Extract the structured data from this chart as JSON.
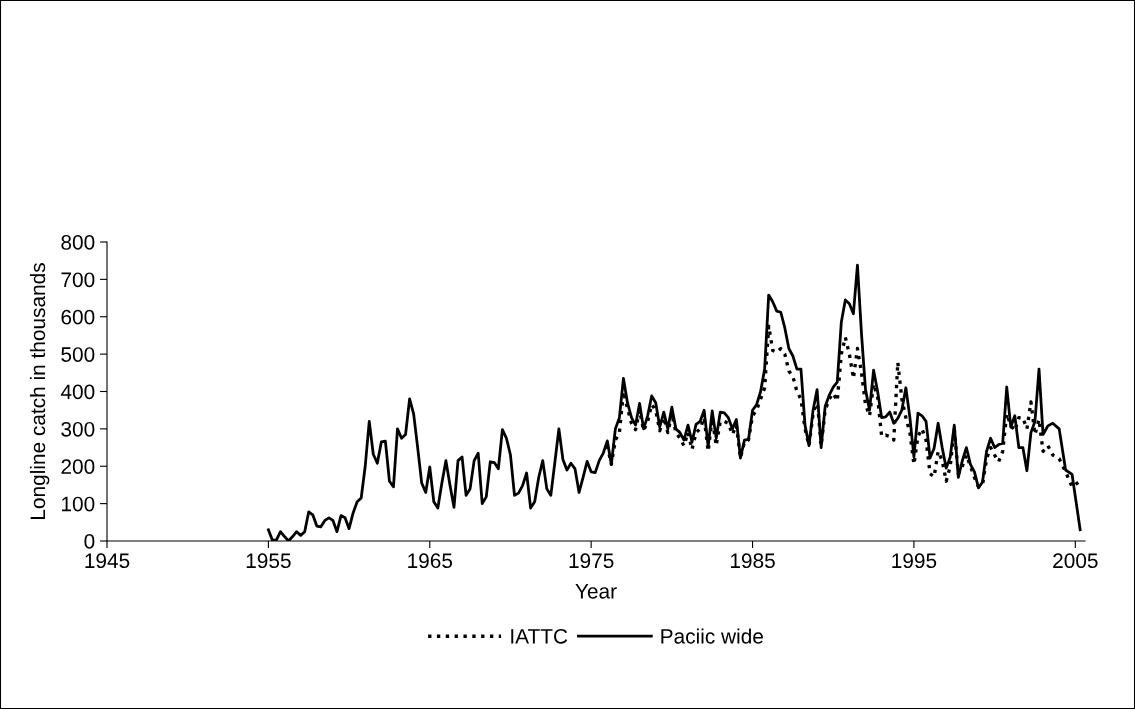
{
  "chart_data": {
    "type": "line",
    "xlabel": "Year",
    "ylabel": "Longline catch in thousands",
    "xlim": [
      1945,
      2005.6
    ],
    "xticks": [
      1945,
      1955,
      1965,
      1975,
      1985,
      1995,
      2005
    ],
    "ylim": [
      0,
      800
    ],
    "yticks": [
      0,
      100,
      200,
      300,
      400,
      500,
      600,
      700,
      800
    ],
    "grid": false,
    "legend": "bottom",
    "marker": "none",
    "series": [
      {
        "name": "IATTC",
        "color": "#000000",
        "line_style": "dotted",
        "x": [
          1976.0,
          1976.25,
          1976.5,
          1976.75,
          1977.0,
          1977.25,
          1977.5,
          1977.75,
          1978.0,
          1978.25,
          1978.5,
          1978.75,
          1979.0,
          1979.25,
          1979.5,
          1979.75,
          1980.0,
          1980.25,
          1980.5,
          1980.75,
          1981.0,
          1981.25,
          1981.5,
          1981.75,
          1982.0,
          1982.25,
          1982.5,
          1982.75,
          1983.0,
          1983.25,
          1983.5,
          1983.75,
          1984.0,
          1984.25,
          1984.5,
          1984.75,
          1985.0,
          1985.25,
          1985.5,
          1985.75,
          1986.0,
          1986.25,
          1986.5,
          1986.75,
          1987.0,
          1987.25,
          1987.5,
          1987.75,
          1988.0,
          1988.25,
          1988.5,
          1988.75,
          1989.0,
          1989.25,
          1989.5,
          1989.75,
          1990.0,
          1990.25,
          1990.5,
          1990.75,
          1991.0,
          1991.25,
          1991.5,
          1991.75,
          1992.0,
          1992.25,
          1992.5,
          1992.75,
          1993.0,
          1993.25,
          1993.5,
          1993.75,
          1994.0,
          1994.25,
          1994.5,
          1994.75,
          1995.0,
          1995.25,
          1995.5,
          1995.75,
          1996.0,
          1996.25,
          1996.5,
          1996.75,
          1997.0,
          1997.25,
          1997.5,
          1997.75,
          1998.0,
          1998.25,
          1998.5,
          1998.75,
          1999.0,
          1999.25,
          1999.5,
          1999.75,
          2000.0,
          2000.25,
          2000.5,
          2000.75,
          2001.0,
          2001.25,
          2001.5,
          2001.75,
          2002.0,
          2002.25,
          2002.5,
          2002.75,
          2003.0,
          2003.3,
          2003.6,
          2004.0,
          2004.4,
          2004.8,
          2005.3
        ],
        "values": [
          255,
          205,
          270,
          290,
          400,
          355,
          315,
          298,
          350,
          295,
          320,
          365,
          350,
          295,
          330,
          290,
          340,
          290,
          275,
          255,
          290,
          245,
          290,
          300,
          330,
          240,
          330,
          255,
          320,
          320,
          315,
          285,
          310,
          222,
          265,
          270,
          335,
          350,
          380,
          410,
          575,
          510,
          505,
          515,
          500,
          455,
          440,
          400,
          380,
          300,
          255,
          340,
          380,
          255,
          350,
          380,
          395,
          375,
          500,
          545,
          500,
          435,
          515,
          450,
          365,
          335,
          420,
          385,
          280,
          283,
          280,
          270,
          478,
          380,
          330,
          290,
          205,
          280,
          300,
          270,
          180,
          172,
          240,
          215,
          160,
          200,
          300,
          180,
          200,
          230,
          200,
          170,
          145,
          150,
          220,
          250,
          230,
          212,
          240,
          340,
          310,
          295,
          330,
          330,
          300,
          372,
          285,
          325,
          240,
          255,
          230,
          220,
          185,
          145,
          160
        ]
      },
      {
        "name": "Paciic wide",
        "color": "#000000",
        "line_style": "solid",
        "x": [
          1955.0,
          1955.25,
          1955.5,
          1955.75,
          1956.0,
          1956.25,
          1956.5,
          1956.75,
          1957.0,
          1957.25,
          1957.5,
          1957.75,
          1958.0,
          1958.25,
          1958.5,
          1958.75,
          1959.0,
          1959.25,
          1959.5,
          1959.75,
          1960.0,
          1960.25,
          1960.5,
          1960.75,
          1961.0,
          1961.25,
          1961.5,
          1961.75,
          1962.0,
          1962.25,
          1962.5,
          1962.75,
          1963.0,
          1963.25,
          1963.5,
          1963.75,
          1964.0,
          1964.25,
          1964.5,
          1964.75,
          1965.0,
          1965.25,
          1965.5,
          1965.75,
          1966.0,
          1966.25,
          1966.5,
          1966.75,
          1967.0,
          1967.25,
          1967.5,
          1967.75,
          1968.0,
          1968.25,
          1968.5,
          1968.75,
          1969.0,
          1969.25,
          1969.5,
          1969.75,
          1970.0,
          1970.25,
          1970.5,
          1970.75,
          1971.0,
          1971.25,
          1971.5,
          1971.75,
          1972.0,
          1972.25,
          1972.5,
          1972.75,
          1973.0,
          1973.25,
          1973.5,
          1973.75,
          1974.0,
          1974.25,
          1974.5,
          1974.75,
          1975.0,
          1975.25,
          1975.5,
          1975.75,
          1976.0,
          1976.25,
          1976.5,
          1976.75,
          1977.0,
          1977.25,
          1977.5,
          1977.75,
          1978.0,
          1978.25,
          1978.5,
          1978.75,
          1979.0,
          1979.25,
          1979.5,
          1979.75,
          1980.0,
          1980.25,
          1980.5,
          1980.75,
          1981.0,
          1981.25,
          1981.5,
          1981.75,
          1982.0,
          1982.25,
          1982.5,
          1982.75,
          1983.0,
          1983.25,
          1983.5,
          1983.75,
          1984.0,
          1984.25,
          1984.5,
          1984.75,
          1985.0,
          1985.25,
          1985.5,
          1985.75,
          1986.0,
          1986.25,
          1986.5,
          1986.75,
          1987.0,
          1987.25,
          1987.5,
          1987.75,
          1988.0,
          1988.25,
          1988.5,
          1988.75,
          1989.0,
          1989.25,
          1989.5,
          1989.75,
          1990.0,
          1990.25,
          1990.5,
          1990.75,
          1991.0,
          1991.25,
          1991.5,
          1991.75,
          1992.0,
          1992.25,
          1992.5,
          1992.75,
          1993.0,
          1993.25,
          1993.5,
          1993.75,
          1994.0,
          1994.25,
          1994.5,
          1994.75,
          1995.0,
          1995.25,
          1995.5,
          1995.75,
          1996.0,
          1996.25,
          1996.5,
          1996.75,
          1997.0,
          1997.25,
          1997.5,
          1997.75,
          1998.0,
          1998.25,
          1998.5,
          1998.75,
          1999.0,
          1999.25,
          1999.5,
          1999.75,
          2000.0,
          2000.25,
          2000.5,
          2000.75,
          2001.0,
          2001.25,
          2001.5,
          2001.75,
          2002.0,
          2002.25,
          2002.5,
          2002.75,
          2003.0,
          2003.3,
          2003.6,
          2004.0,
          2004.4,
          2004.8,
          2005.3
        ],
        "values": [
          30,
          2,
          3,
          25,
          12,
          0,
          12,
          25,
          15,
          25,
          78,
          70,
          40,
          38,
          55,
          62,
          55,
          25,
          68,
          62,
          33,
          75,
          105,
          115,
          200,
          320,
          232,
          208,
          265,
          267,
          160,
          145,
          300,
          275,
          285,
          380,
          340,
          250,
          155,
          130,
          198,
          105,
          88,
          155,
          215,
          150,
          90,
          215,
          225,
          122,
          140,
          215,
          235,
          100,
          118,
          212,
          210,
          193,
          298,
          275,
          230,
          122,
          128,
          148,
          182,
          88,
          105,
          170,
          215,
          140,
          122,
          210,
          300,
          218,
          190,
          208,
          193,
          130,
          170,
          213,
          185,
          183,
          215,
          235,
          268,
          205,
          300,
          330,
          435,
          370,
          330,
          310,
          368,
          300,
          335,
          388,
          370,
          305,
          345,
          300,
          358,
          300,
          290,
          270,
          310,
          265,
          312,
          320,
          350,
          252,
          348,
          275,
          345,
          343,
          330,
          300,
          325,
          222,
          270,
          272,
          350,
          365,
          400,
          460,
          658,
          640,
          615,
          612,
          570,
          515,
          495,
          460,
          460,
          310,
          255,
          350,
          405,
          250,
          360,
          390,
          412,
          425,
          585,
          645,
          635,
          608,
          738,
          555,
          405,
          350,
          457,
          400,
          330,
          332,
          345,
          315,
          328,
          350,
          410,
          330,
          225,
          342,
          335,
          320,
          222,
          248,
          315,
          250,
          195,
          225,
          310,
          170,
          215,
          250,
          205,
          185,
          142,
          158,
          240,
          275,
          250,
          258,
          262,
          412,
          305,
          335,
          250,
          250,
          188,
          290,
          320,
          460,
          285,
          308,
          315,
          300,
          190,
          178,
          30
        ]
      }
    ]
  }
}
